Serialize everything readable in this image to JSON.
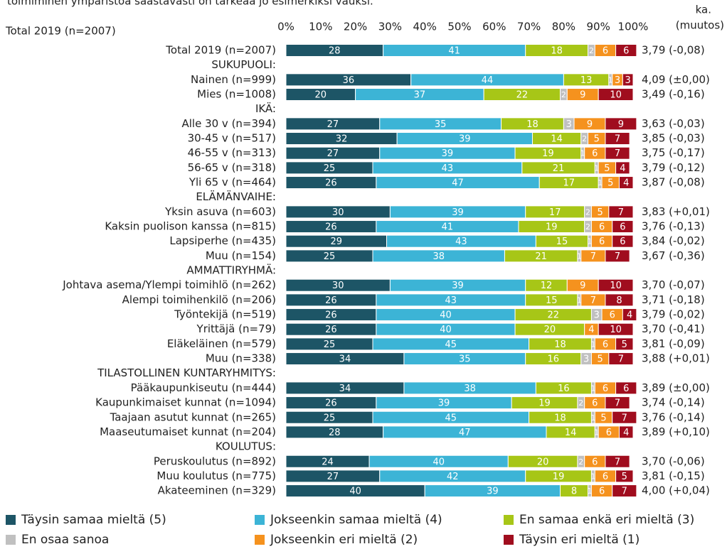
{
  "chart_data": {
    "type": "stacked-bar",
    "orientation": "horizontal",
    "title": "toimiminen ympäristöä säästävästi on tärkeää jo esimerkiksi vauksi.",
    "subtitle": "Total 2019 (n=2007)",
    "right_header": [
      "ka.",
      "(muutos)"
    ],
    "xlim": [
      0,
      100
    ],
    "xticks": [
      {
        "value": 0,
        "label": "0%"
      },
      {
        "value": 10,
        "label": "10%"
      },
      {
        "value": 20,
        "label": "20%"
      },
      {
        "value": 30,
        "label": "30%"
      },
      {
        "value": 40,
        "label": "40%"
      },
      {
        "value": 50,
        "label": "50%"
      },
      {
        "value": 60,
        "label": "60%"
      },
      {
        "value": 70,
        "label": "70%"
      },
      {
        "value": 80,
        "label": "80%"
      },
      {
        "value": 90,
        "label": "90%"
      },
      {
        "value": 100,
        "label": "100%"
      }
    ],
    "categories": [
      "Total 2019 (n=2007)",
      "SUKUPUOLI:",
      "Nainen (n=999)",
      "Mies (n=1008)",
      "IKÄ:",
      "Alle 30 v (n=394)",
      "30-45 v (n=517)",
      "46-55 v (n=313)",
      "56-65 v (n=318)",
      "Yli 65 v (n=464)",
      "ELÄMÄNVAIHE:",
      "Yksin asuva (n=603)",
      "Kaksin puolison kanssa (n=815)",
      "Lapsiperhe (n=435)",
      "Muu (n=154)",
      "AMMATTIRYHMÄ:",
      "Johtava asema/Ylempi toimihlö (n=262)",
      "Alempi toimihenkilö (n=206)",
      "Työntekijä (n=519)",
      "Yrittäjä (n=79)",
      "Eläkeläinen (n=579)",
      "Muu (n=338)",
      "TILASTOLLINEN KUNTARYHMITYS:",
      "Pääkaupunkiseutu (n=444)",
      "Kaupunkimaiset kunnat (n=1094)",
      "Taajaan asutut kunnat (n=265)",
      "Maaseutumaiset kunnat (n=204)",
      "KOULUTUS:",
      "Peruskoulutus (n=892)",
      "Muu koulutus (n=775)",
      "Akateeminen (n=329)"
    ],
    "averages": [
      "3,79 (-0,08)",
      null,
      "4,09 (±0,00)",
      "3,49 (-0,16)",
      null,
      "3,63 (-0,03)",
      "3,85 (-0,03)",
      "3,75 (-0,17)",
      "3,79 (-0,12)",
      "3,87 (-0,08)",
      null,
      "3,83 (+0,01)",
      "3,76 (-0,13)",
      "3,84 (-0,02)",
      "3,67 (-0,36)",
      null,
      "3,70 (-0,07)",
      "3,71 (-0,18)",
      "3,79 (-0,02)",
      "3,70 (-0,41)",
      "3,81 (-0,09)",
      "3,88 (+0,01)",
      null,
      "3,89 (±0,00)",
      "3,74 (-0,14)",
      "3,76 (-0,14)",
      "3,89 (+0,10)",
      null,
      "3,70 (-0,06)",
      "3,81 (-0,15)",
      "4,00 (+0,04)"
    ],
    "series": [
      {
        "name": "Täysin samaa mieltä (5)",
        "color": "#1d5566",
        "values": [
          28,
          null,
          36,
          20,
          null,
          27,
          32,
          27,
          25,
          26,
          null,
          30,
          26,
          29,
          25,
          null,
          30,
          26,
          26,
          26,
          25,
          34,
          null,
          34,
          26,
          25,
          28,
          null,
          24,
          27,
          40
        ]
      },
      {
        "name": "Jokseenkin samaa mieltä (4)",
        "color": "#3cb4d6",
        "values": [
          41,
          null,
          44,
          37,
          null,
          35,
          39,
          39,
          43,
          47,
          null,
          39,
          41,
          43,
          38,
          null,
          39,
          43,
          40,
          40,
          45,
          35,
          null,
          38,
          39,
          45,
          47,
          null,
          40,
          42,
          39
        ]
      },
      {
        "name": "En samaa enkä eri mieltä (3)",
        "color": "#a7c617",
        "values": [
          18,
          null,
          13,
          22,
          null,
          18,
          14,
          19,
          21,
          17,
          null,
          17,
          19,
          15,
          21,
          null,
          12,
          15,
          22,
          20,
          18,
          16,
          null,
          16,
          19,
          18,
          14,
          null,
          20,
          19,
          8
        ]
      },
      {
        "name": "En osaa sanoa",
        "color": "#c0c0c0",
        "values": [
          2,
          null,
          1,
          2,
          null,
          3,
          2,
          1,
          1,
          1,
          null,
          2,
          2,
          1,
          1,
          null,
          0,
          1,
          3,
          0,
          1,
          3,
          null,
          1,
          2,
          1,
          1,
          null,
          2,
          1,
          1
        ]
      },
      {
        "name": "Jokseenkin eri mieltä (2)",
        "color": "#f5921e",
        "values": [
          6,
          null,
          3,
          9,
          null,
          9,
          5,
          6,
          5,
          5,
          null,
          5,
          6,
          6,
          7,
          null,
          9,
          7,
          6,
          4,
          6,
          5,
          null,
          6,
          6,
          5,
          6,
          null,
          6,
          6,
          6
        ]
      },
      {
        "name": "Täysin eri mieltä (1)",
        "color": "#a00d1e",
        "values": [
          6,
          null,
          3,
          10,
          null,
          9,
          7,
          7,
          4,
          4,
          null,
          7,
          6,
          6,
          7,
          null,
          10,
          8,
          4,
          10,
          5,
          7,
          null,
          6,
          7,
          7,
          4,
          null,
          7,
          5,
          7
        ]
      }
    ]
  }
}
